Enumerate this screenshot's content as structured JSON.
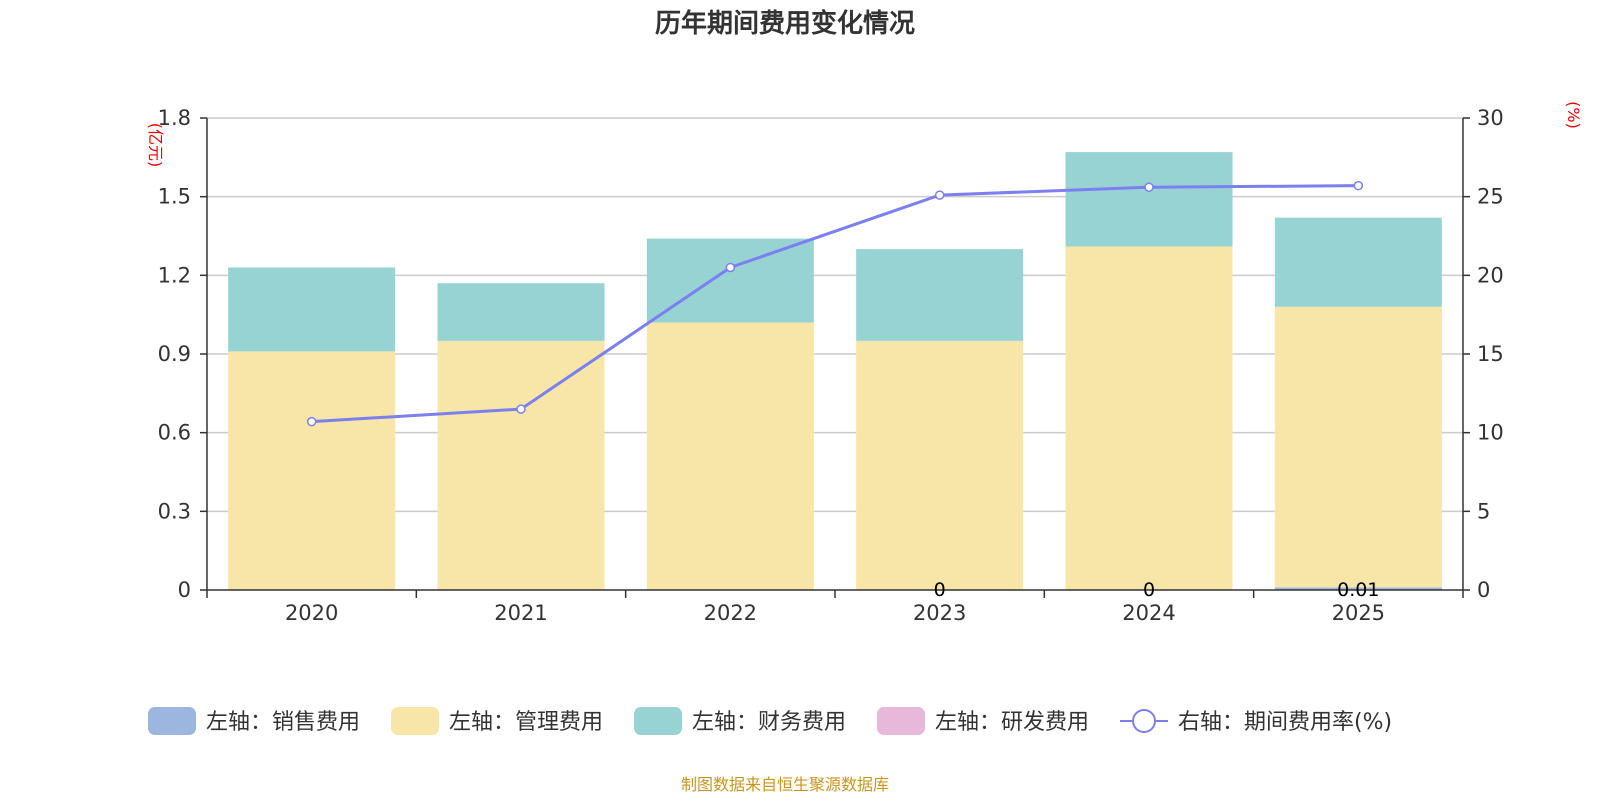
{
  "chart_data": {
    "type": "bar",
    "stacked": true,
    "title": "历年期间费用变化情况",
    "categories": [
      "2020",
      "2021",
      "2022",
      "2023",
      "2024",
      "2025"
    ],
    "left_axis": {
      "unit_label": "(亿元)",
      "ylim": [
        0,
        1.8
      ],
      "ticks": [
        "0",
        "0.3",
        "0.6",
        "0.9",
        "1.2",
        "1.5",
        "1.8"
      ]
    },
    "right_axis": {
      "unit_label": "(%)",
      "ylim": [
        0,
        30
      ],
      "ticks": [
        "0",
        "5",
        "10",
        "15",
        "20",
        "25",
        "30"
      ]
    },
    "series": [
      {
        "name": "左轴：销售费用",
        "kind": "bar",
        "color": "#9db6e0",
        "values": [
          0,
          0,
          0,
          0,
          0,
          0.01
        ]
      },
      {
        "name": "左轴：管理费用",
        "kind": "bar",
        "color": "#f7e6a7",
        "values": [
          0.91,
          0.95,
          1.02,
          0.95,
          1.31,
          1.07
        ]
      },
      {
        "name": "左轴：财务费用",
        "kind": "bar",
        "color": "#98d3d4",
        "values": [
          0.32,
          0.22,
          0.32,
          0.35,
          0.36,
          0.34
        ]
      },
      {
        "name": "左轴：研发费用",
        "kind": "bar",
        "color": "#e8b8da",
        "values": [
          0,
          0,
          0,
          0,
          0,
          0
        ]
      },
      {
        "name": "右轴：期间费用率(%)",
        "kind": "line",
        "color": "#7b7ff0",
        "values": [
          10.7,
          11.5,
          20.5,
          25.1,
          25.6,
          25.7
        ]
      }
    ],
    "data_labels": [
      {
        "category": "2023",
        "text": "0"
      },
      {
        "category": "2024",
        "text": "0"
      },
      {
        "category": "2025",
        "text": "0.01"
      }
    ],
    "legend_position": "bottom",
    "grid": true
  },
  "footer": {
    "source": "制图数据来自恒生聚源数据库"
  }
}
